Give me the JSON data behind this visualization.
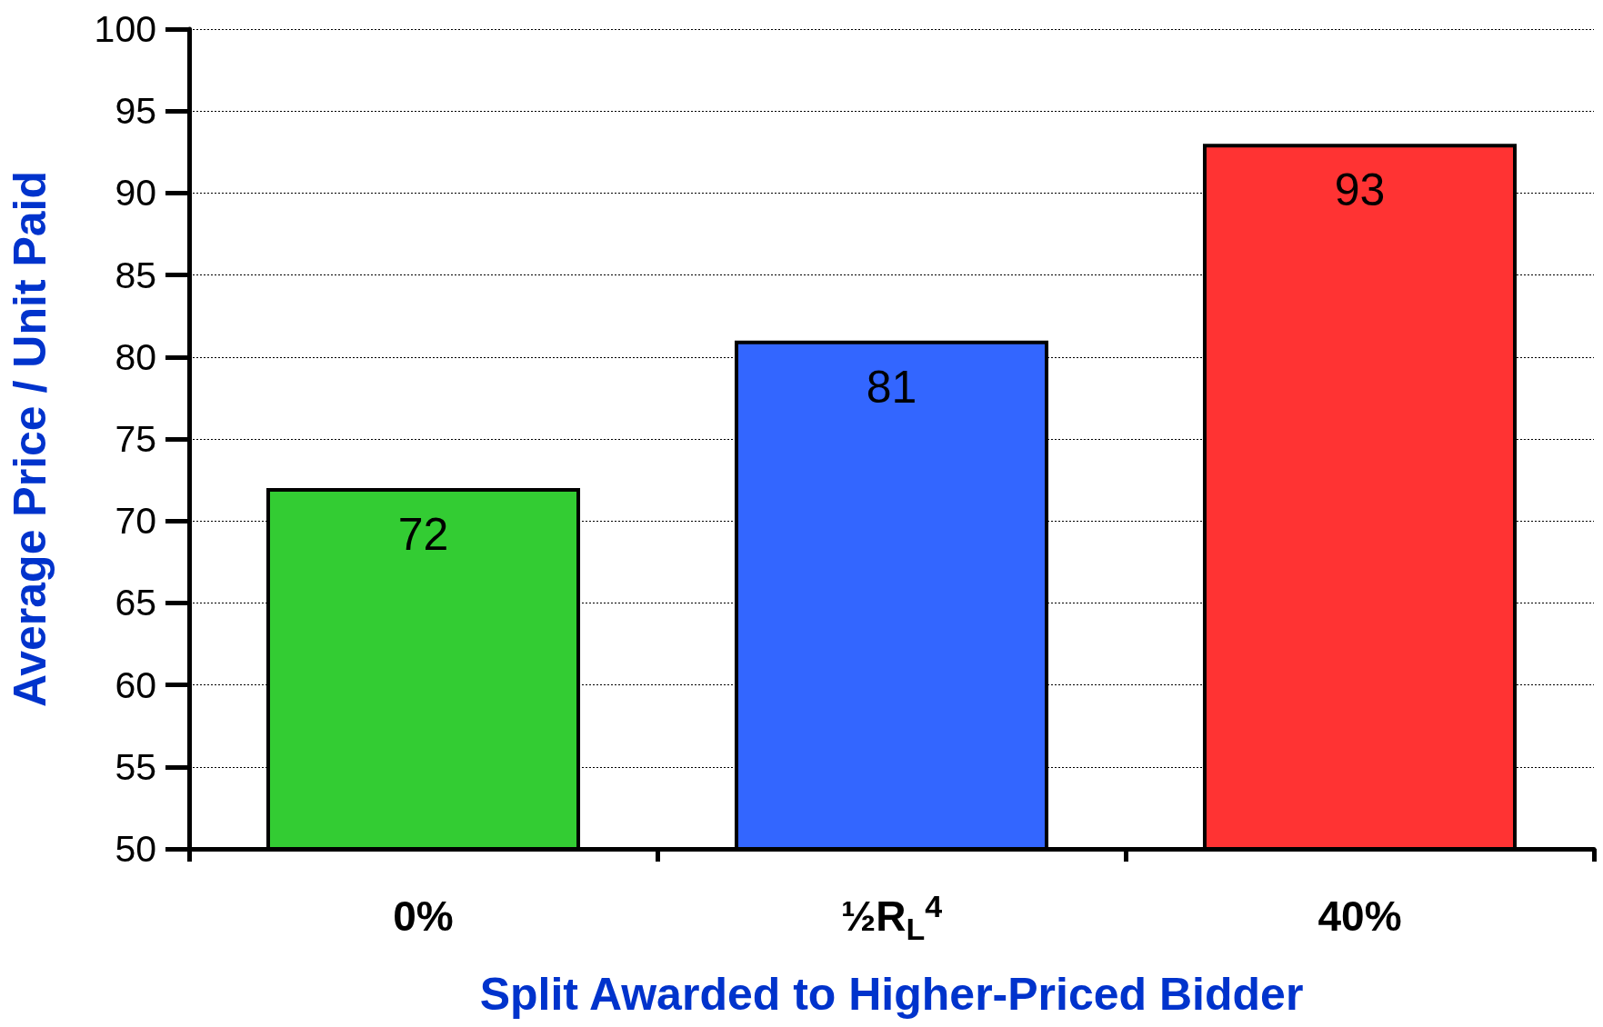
{
  "chart_data": {
    "type": "bar",
    "xlabel": "Split Awarded to Higher-Priced Bidder",
    "ylabel": "Average Price / Unit Paid",
    "categories": [
      "0%",
      "½R$_{L}$$^{4}$",
      "40%"
    ],
    "values": [
      72,
      81,
      93
    ],
    "colors": [
      "#33cc33",
      "#3366ff",
      "#ff3333"
    ],
    "ylim": [
      50,
      100
    ],
    "yticks": [
      50,
      55,
      60,
      65,
      70,
      75,
      80,
      85,
      90,
      95,
      100
    ],
    "grid": "y",
    "data_labels": true
  }
}
